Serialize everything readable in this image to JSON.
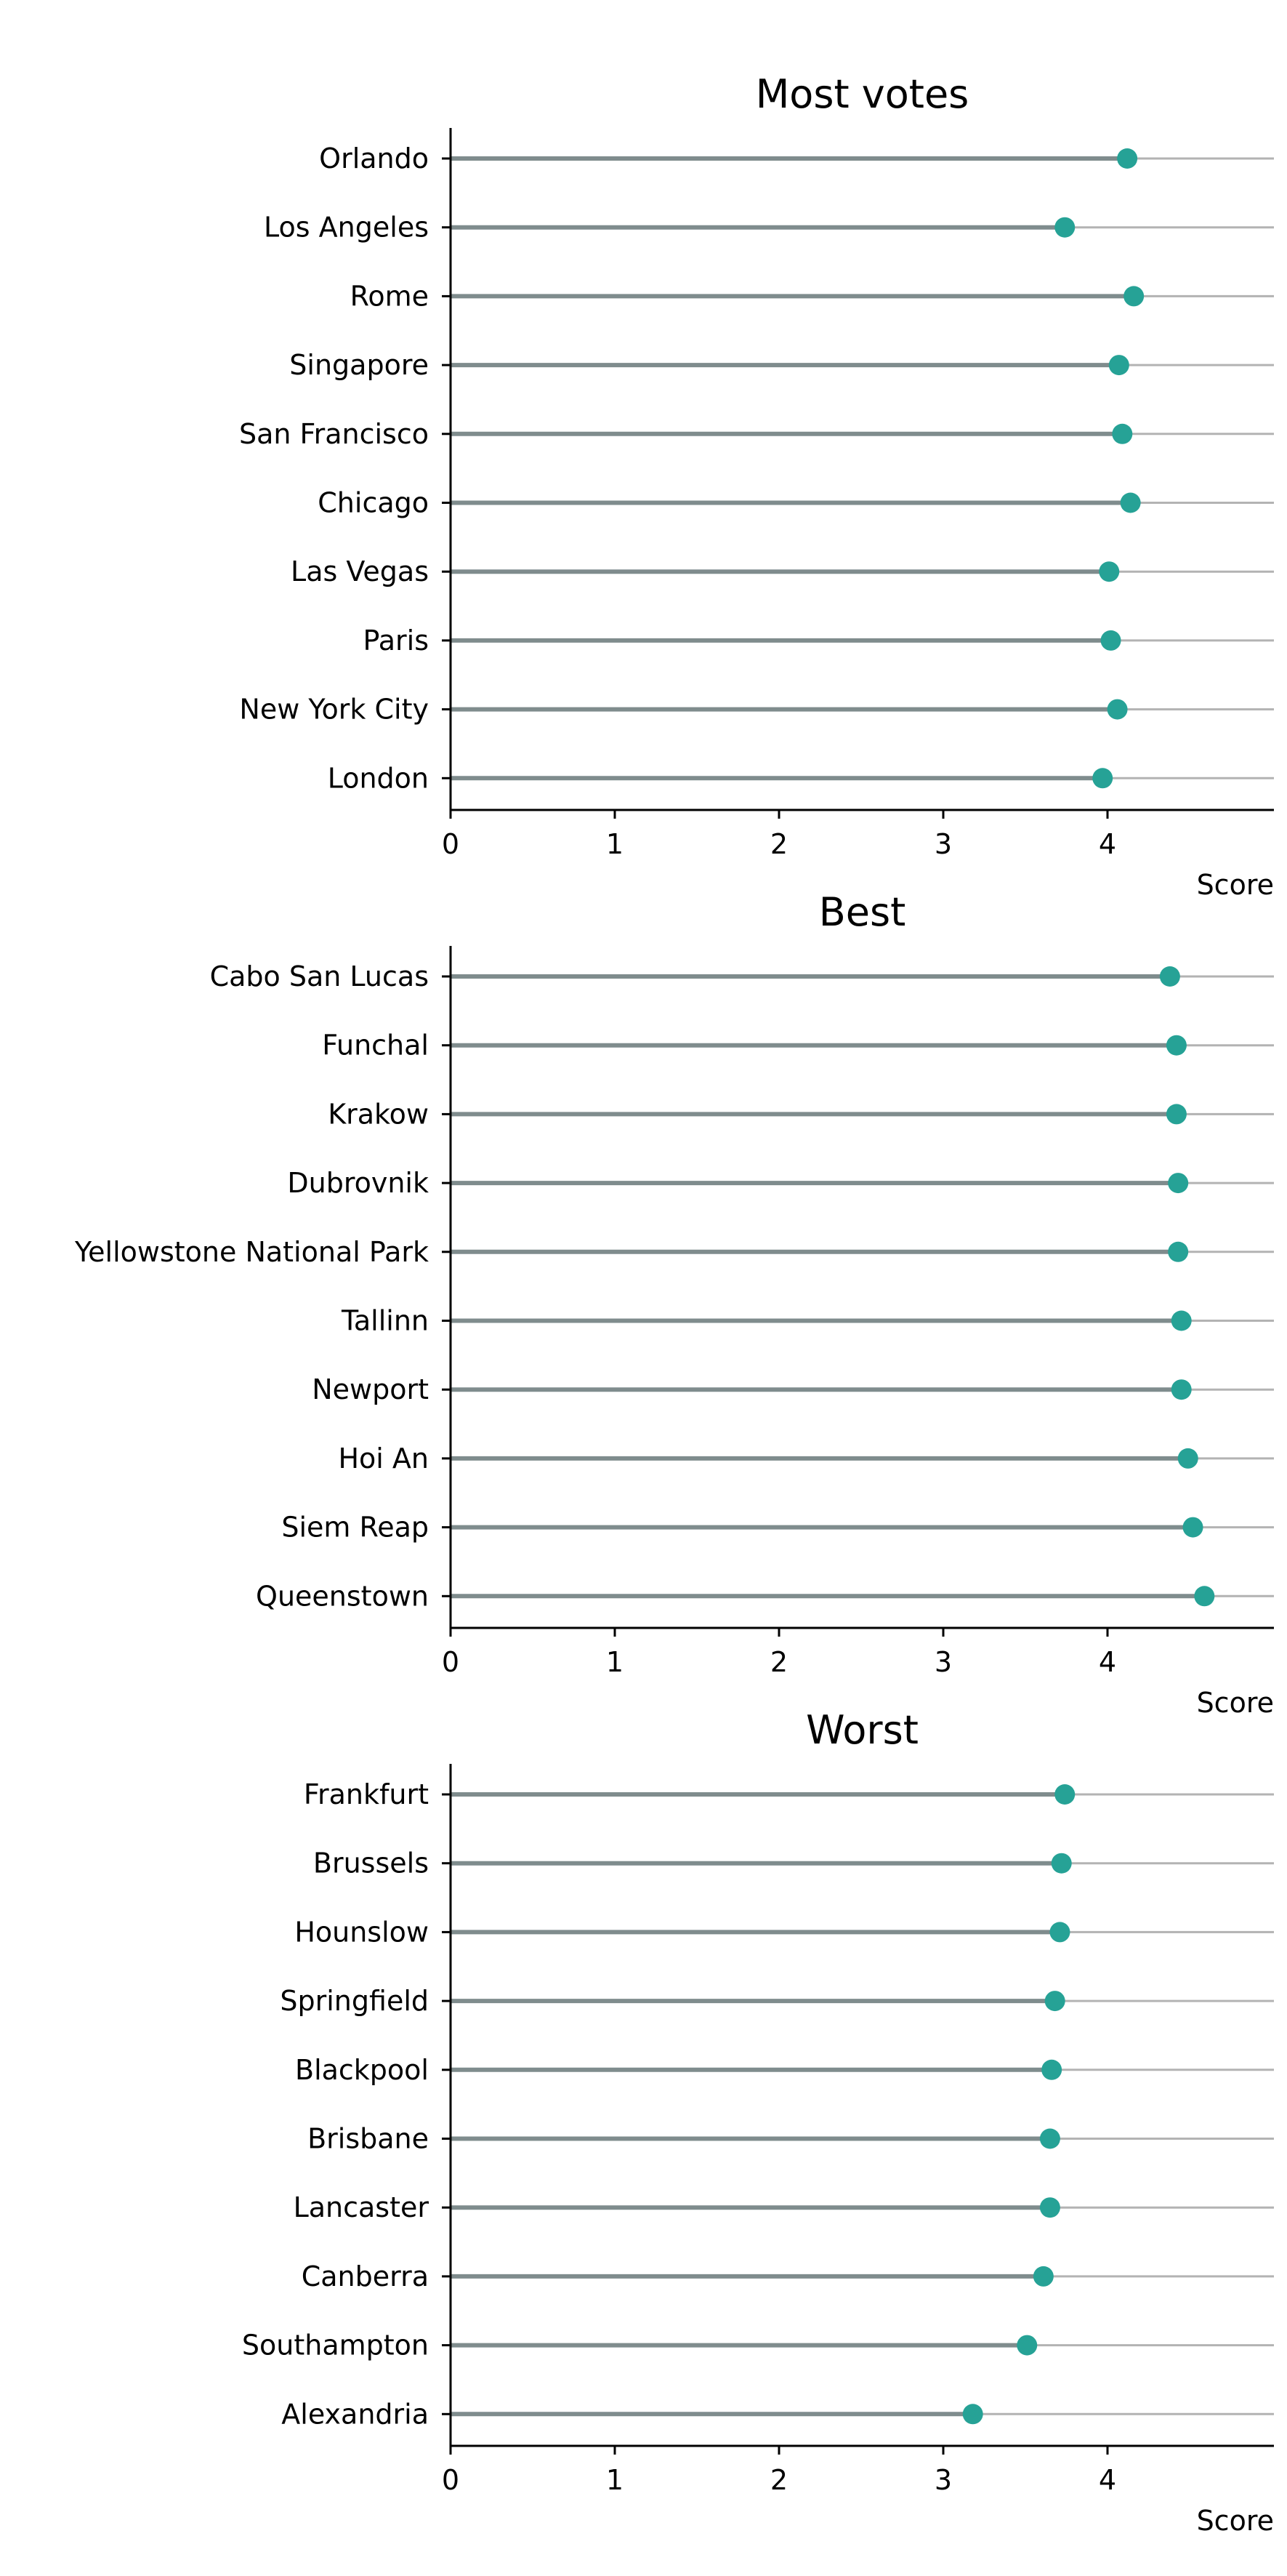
{
  "style": {
    "dot_color": "#26a296",
    "stem_color": "#7f8c8d",
    "grid_color": "#b3b3b3",
    "axis_color": "#000000"
  },
  "chart_data": [
    {
      "type": "lollipop",
      "title": "Most votes",
      "xlabel": "Score",
      "xlim": [
        0,
        5
      ],
      "xticks": [
        "0",
        "1",
        "2",
        "3",
        "4"
      ],
      "categories": [
        "Orlando",
        "Los Angeles",
        "Rome",
        "Singapore",
        "San Francisco",
        "Chicago",
        "Las Vegas",
        "Paris",
        "New York City",
        "London"
      ],
      "values": [
        4.12,
        3.74,
        4.16,
        4.07,
        4.09,
        4.14,
        4.01,
        4.02,
        4.06,
        3.97
      ]
    },
    {
      "type": "lollipop",
      "title": "Best",
      "xlabel": "Score",
      "xlim": [
        0,
        5
      ],
      "xticks": [
        "0",
        "1",
        "2",
        "3",
        "4"
      ],
      "categories": [
        "Cabo San Lucas",
        "Funchal",
        "Krakow",
        "Dubrovnik",
        "Yellowstone National Park",
        "Tallinn",
        "Newport",
        "Hoi An",
        "Siem Reap",
        "Queenstown"
      ],
      "values": [
        4.38,
        4.42,
        4.42,
        4.43,
        4.43,
        4.45,
        4.45,
        4.49,
        4.52,
        4.59
      ]
    },
    {
      "type": "lollipop",
      "title": "Worst",
      "xlabel": "Score",
      "xlim": [
        0,
        5
      ],
      "xticks": [
        "0",
        "1",
        "2",
        "3",
        "4"
      ],
      "categories": [
        "Frankfurt",
        "Brussels",
        "Hounslow",
        "Springfield",
        "Blackpool",
        "Brisbane",
        "Lancaster",
        "Canberra",
        "Southampton",
        "Alexandria"
      ],
      "values": [
        3.74,
        3.72,
        3.71,
        3.68,
        3.66,
        3.65,
        3.65,
        3.61,
        3.51,
        3.18
      ]
    }
  ]
}
